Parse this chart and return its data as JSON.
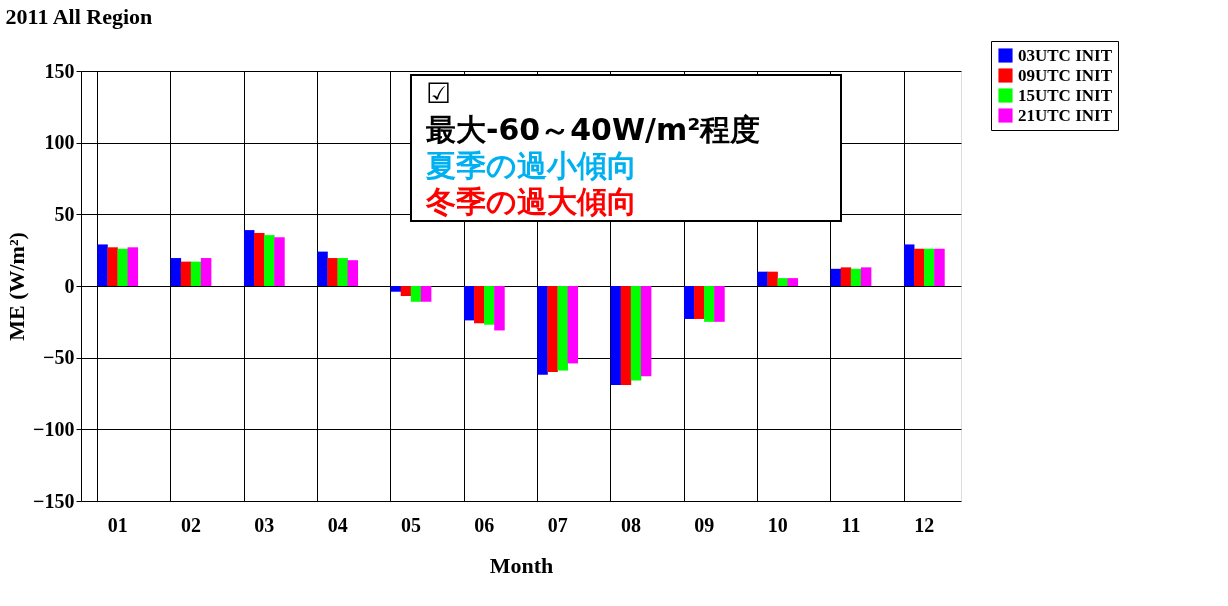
{
  "chart_data": {
    "type": "bar",
    "title": "2011   All Region",
    "xlabel": "Month",
    "ylabel": "ME (W/m²)",
    "categories": [
      "01",
      "02",
      "03",
      "04",
      "05",
      "06",
      "07",
      "08",
      "09",
      "10",
      "11",
      "12"
    ],
    "series": [
      {
        "name": "03UTC INIT",
        "color": "#0000ff",
        "values": [
          29,
          19.5,
          39,
          24,
          -4,
          -24,
          -62,
          -69,
          -23,
          10,
          12,
          29
        ]
      },
      {
        "name": "09UTC INIT",
        "color": "#ff0000",
        "values": [
          27,
          17,
          37,
          19.5,
          -7,
          -26,
          -60,
          -69,
          -23,
          10,
          13,
          26
        ]
      },
      {
        "name": "15UTC INIT",
        "color": "#00ff00",
        "values": [
          26,
          17,
          35.5,
          19.5,
          -11,
          -27,
          -59,
          -66,
          -25,
          5.5,
          12,
          26
        ]
      },
      {
        "name": "21UTC INIT",
        "color": "#ff00ff",
        "values": [
          27,
          19.5,
          34,
          18,
          -11,
          -31,
          -54,
          -63,
          -25,
          5.5,
          13,
          26
        ]
      }
    ],
    "ylim": [
      -150,
      150
    ],
    "yticks": [
      -150,
      -100,
      -50,
      0,
      50,
      100,
      150
    ],
    "grid": true,
    "legend": "top right",
    "annotations": [
      "☑",
      "最大-60～40W/m²程度",
      "夏季の過小傾向",
      "冬季の過大傾向"
    ]
  }
}
